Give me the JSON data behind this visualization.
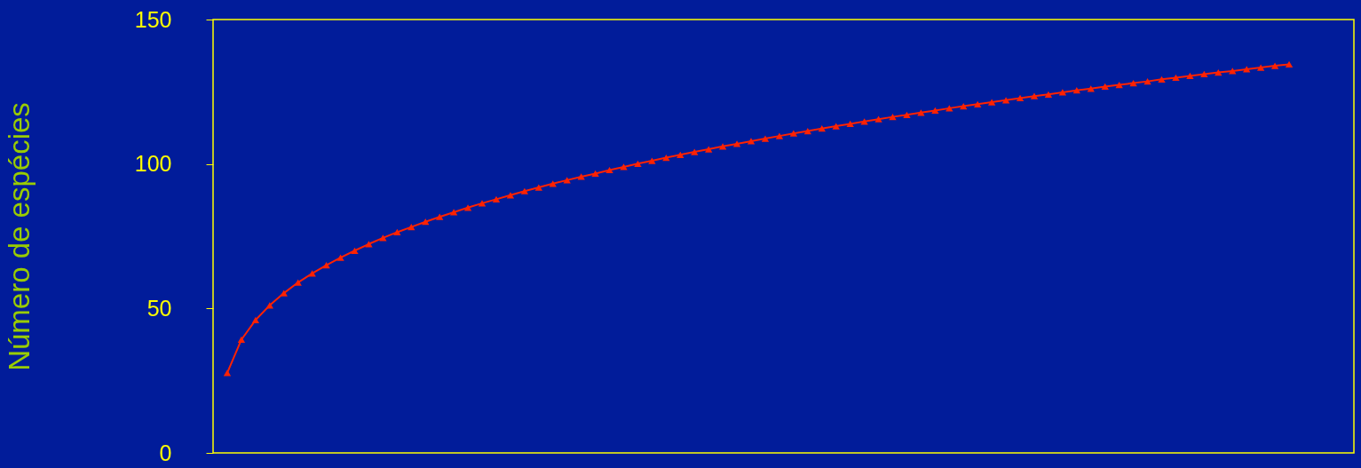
{
  "chart_data": {
    "type": "line",
    "ylabel": "Número de espécies",
    "categories": [
      null,
      null,
      null,
      null,
      null,
      null,
      null,
      null,
      null,
      null,
      null,
      null,
      null,
      null,
      null,
      null,
      null,
      null,
      null,
      null,
      null,
      null,
      null,
      null,
      null,
      null,
      null,
      null,
      null,
      null,
      null,
      null,
      null,
      null,
      null,
      null,
      null,
      null,
      null,
      null,
      null,
      null,
      null,
      null,
      null,
      null,
      null,
      null,
      null,
      null,
      null,
      null,
      null,
      null,
      null,
      null,
      null,
      null,
      null,
      null,
      null,
      null,
      null,
      null,
      null,
      null,
      null,
      null,
      null,
      null,
      null,
      null,
      null,
      null,
      null,
      null
    ],
    "series": [
      {
        "color": "#ff2200",
        "values": [
          27.7,
          39.2,
          46.0,
          51.1,
          55.3,
          59.0,
          62.1,
          65.0,
          67.6,
          70.0,
          72.3,
          74.4,
          76.4,
          78.2,
          80.0,
          81.7,
          83.3,
          84.9,
          86.4,
          87.8,
          89.2,
          90.6,
          91.9,
          93.2,
          94.4,
          95.6,
          96.7,
          97.9,
          99.0,
          100.1,
          101.1,
          102.2,
          103.2,
          104.2,
          105.1,
          106.1,
          107.0,
          107.9,
          108.8,
          109.7,
          110.6,
          111.4,
          112.3,
          113.1,
          113.9,
          114.7,
          115.5,
          116.3,
          117.0,
          117.8,
          118.5,
          119.3,
          120.0,
          120.7,
          121.4,
          122.1,
          122.8,
          123.5,
          124.1,
          124.8,
          125.5,
          126.1,
          126.8,
          127.4,
          128.0,
          128.6,
          129.3,
          129.9,
          130.5,
          131.1,
          131.7,
          132.2,
          132.8,
          133.4,
          134.0,
          134.5
        ]
      }
    ],
    "ylim": [
      0,
      150
    ],
    "yticks": [
      0,
      50,
      100,
      150
    ],
    "marker": "triangle",
    "tick_labels": "y",
    "grid": false
  }
}
